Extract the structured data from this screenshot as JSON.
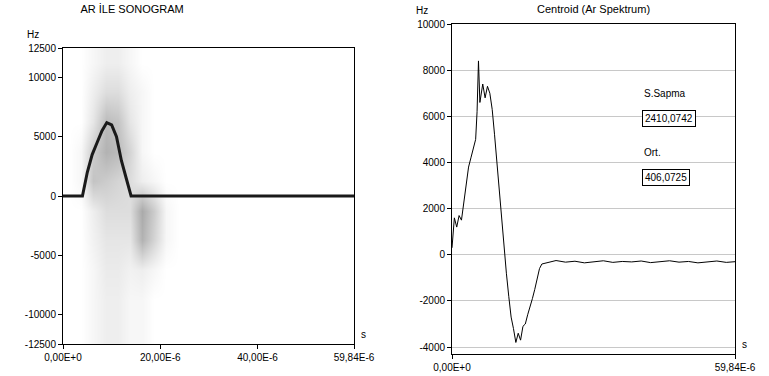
{
  "chart_data": [
    {
      "type": "heatmap",
      "title": "AR İLE SONOGRAM",
      "y_label": "Hz",
      "x_label": "s",
      "xlim": [
        0,
        5.984e-05
      ],
      "xticks": [
        {
          "value": 0,
          "label": "0,00E+0"
        },
        {
          "value": 2e-05,
          "label": "20,00E-6"
        },
        {
          "value": 4e-05,
          "label": "40,00E-6"
        },
        {
          "value": 5.984e-05,
          "label": "59,84E-6"
        }
      ],
      "ylim": [
        -12500,
        12500
      ],
      "yticks": [
        -12500,
        -10000,
        -5000,
        0,
        5000,
        10000,
        12500
      ],
      "grid": false,
      "x": [
        1.25e-06,
        3.75e-06,
        6.25e-06,
        8.75e-06,
        1.125e-05,
        1.375e-05,
        1.625e-05,
        1.875e-05,
        2.125e-05,
        2.375e-05,
        2.625e-05,
        2.875e-05
      ],
      "y": [
        -11250,
        -8750,
        -6250,
        -3750,
        -1250,
        1250,
        3750,
        6250,
        8750,
        11250
      ],
      "cells": [
        [
          0,
          0,
          0.05,
          0.1,
          0.1,
          0.05,
          0.05,
          0,
          0,
          0,
          0,
          0
        ],
        [
          0,
          0,
          0.05,
          0.1,
          0.1,
          0.05,
          0.05,
          0,
          0,
          0,
          0,
          0
        ],
        [
          0,
          0,
          0.05,
          0.12,
          0.12,
          0.08,
          0.1,
          0.05,
          0,
          0,
          0,
          0
        ],
        [
          0,
          0,
          0.08,
          0.15,
          0.15,
          0.15,
          0.45,
          0.25,
          0.05,
          0,
          0,
          0
        ],
        [
          0,
          0,
          0.1,
          0.2,
          0.2,
          0.2,
          0.5,
          0.3,
          0.05,
          0,
          0,
          0
        ],
        [
          0,
          0.05,
          0.35,
          0.3,
          0.25,
          0.2,
          0.1,
          0.05,
          0,
          0,
          0,
          0
        ],
        [
          0,
          0.05,
          0.3,
          0.45,
          0.4,
          0.25,
          0.05,
          0,
          0,
          0,
          0,
          0
        ],
        [
          0,
          0,
          0.15,
          0.4,
          0.35,
          0.15,
          0.05,
          0,
          0,
          0,
          0,
          0
        ],
        [
          0,
          0,
          0.1,
          0.2,
          0.2,
          0.1,
          0.05,
          0,
          0,
          0,
          0,
          0
        ],
        [
          0,
          0,
          0.05,
          0.1,
          0.1,
          0.05,
          0,
          0,
          0,
          0,
          0,
          0
        ]
      ],
      "zlim": [
        0,
        1
      ],
      "series": [
        {
          "type": "line",
          "color": "#1a1a1a",
          "x": [
            0,
            2e-06,
            4e-06,
            5e-06,
            6e-06,
            7e-06,
            8e-06,
            9e-06,
            1e-05,
            1.1e-05,
            1.2e-05,
            1.3e-05,
            1.4e-05,
            1.5e-05,
            2e-05,
            3e-05,
            4e-05,
            5e-05,
            5.984e-05
          ],
          "values": [
            0,
            0,
            0,
            2000,
            3500,
            4500,
            5500,
            6200,
            6000,
            5000,
            3000,
            1500,
            0,
            0,
            0,
            0,
            0,
            0,
            0
          ]
        }
      ]
    },
    {
      "type": "line",
      "title": "Centroid (Ar Spektrum)",
      "y_label": "Hz",
      "x_label": "s",
      "xlim": [
        0,
        5.984e-05
      ],
      "xticks": [
        {
          "value": 0,
          "label": "0,00E+0"
        },
        {
          "value": 5.984e-05,
          "label": "59,84E-6"
        }
      ],
      "ylim": [
        -4300,
        10000
      ],
      "yticks": [
        -4000,
        -2000,
        0,
        2000,
        4000,
        6000,
        8000,
        10000
      ],
      "grid": true,
      "color": "#000000",
      "x": [
        0,
        5e-07,
        1e-06,
        1.5e-06,
        2e-06,
        2.5e-06,
        3e-06,
        3.5e-06,
        4e-06,
        4.5e-06,
        5e-06,
        5.3e-06,
        5.6e-06,
        5.9e-06,
        6.2e-06,
        6.5e-06,
        7e-06,
        7.5e-06,
        8e-06,
        8.5e-06,
        9e-06,
        9.5e-06,
        1e-05,
        1.05e-05,
        1.1e-05,
        1.15e-05,
        1.2e-05,
        1.25e-05,
        1.3e-05,
        1.35e-05,
        1.4e-05,
        1.45e-05,
        1.5e-05,
        1.55e-05,
        1.6e-05,
        1.65e-05,
        1.7e-05,
        1.75e-05,
        1.8e-05,
        1.85e-05,
        1.9e-05,
        2e-05,
        2.2e-05,
        2.4e-05,
        2.6e-05,
        2.8e-05,
        3e-05,
        3.2e-05,
        3.4e-05,
        3.6e-05,
        3.8e-05,
        4e-05,
        4.2e-05,
        4.4e-05,
        4.6e-05,
        4.8e-05,
        5e-05,
        5.2e-05,
        5.4e-05,
        5.6e-05,
        5.8e-05,
        5.984e-05
      ],
      "values": [
        300,
        1600,
        1200,
        1700,
        1500,
        2300,
        3000,
        3800,
        4200,
        4600,
        5000,
        6200,
        8400,
        6600,
        7000,
        7400,
        6800,
        7300,
        7000,
        6300,
        5200,
        4000,
        2600,
        1300,
        300,
        -800,
        -1800,
        -2700,
        -3200,
        -3800,
        -3400,
        -3700,
        -3100,
        -3000,
        -2600,
        -2300,
        -1900,
        -1500,
        -1000,
        -600,
        -400,
        -350,
        -250,
        -320,
        -280,
        -350,
        -300,
        -260,
        -330,
        -290,
        -310,
        -270,
        -340,
        -300,
        -260,
        -320,
        -290,
        -350,
        -300,
        -270,
        -330,
        -300
      ],
      "stats": [
        {
          "label": "S.Sapma",
          "value": "2410,0742"
        },
        {
          "label": "Ort.",
          "value": "406,0725"
        }
      ]
    }
  ]
}
